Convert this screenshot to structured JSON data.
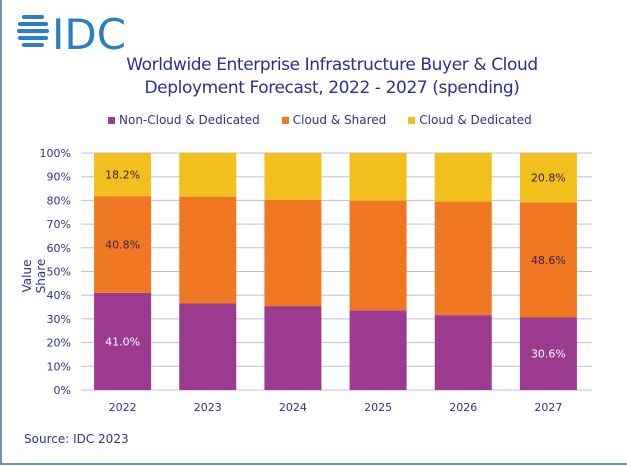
{
  "logo_text": "IDC",
  "chart_data": {
    "type": "bar",
    "stacked": true,
    "title": "Worldwide Enterprise Infrastructure Buyer & Cloud Deployment Forecast, 2022 - 2027 (spending)",
    "title_lines": [
      "Worldwide Enterprise Infrastructure Buyer & Cloud",
      "Deployment Forecast, 2022 - 2027 (spending)"
    ],
    "categories": [
      "2022",
      "2023",
      "2024",
      "2025",
      "2026",
      "2027"
    ],
    "series": [
      {
        "name": "Non-Cloud & Dedicated",
        "color": "#9b3b8f",
        "values": [
          41.0,
          36.5,
          35.4,
          33.6,
          31.6,
          30.6
        ],
        "labels": [
          "41.0%",
          "",
          "",
          "",
          "",
          "30.6%"
        ],
        "label_color": "#ffffff"
      },
      {
        "name": "Cloud & Shared",
        "color": "#f07823",
        "values": [
          40.8,
          45.1,
          44.9,
          46.3,
          47.9,
          48.6
        ],
        "labels": [
          "40.8%",
          "",
          "",
          "",
          "",
          "48.6%"
        ],
        "label_color": "#3a2050"
      },
      {
        "name": "Cloud & Dedicated",
        "color": "#f2c01e",
        "values": [
          18.2,
          18.4,
          19.7,
          20.1,
          20.5,
          20.8
        ],
        "labels": [
          "18.2%",
          "",
          "",
          "",
          "",
          "20.8%"
        ],
        "label_color": "#3a2050"
      }
    ],
    "ylabel": "Value Share",
    "xlabel": "",
    "ylim": [
      0,
      100
    ],
    "yticks": [
      "0%",
      "10%",
      "20%",
      "30%",
      "40%",
      "50%",
      "60%",
      "70%",
      "80%",
      "90%",
      "100%"
    ],
    "grid": true,
    "legend_position": "top",
    "gridline_color": "#bdbde8"
  },
  "source": "Source: IDC 2023"
}
